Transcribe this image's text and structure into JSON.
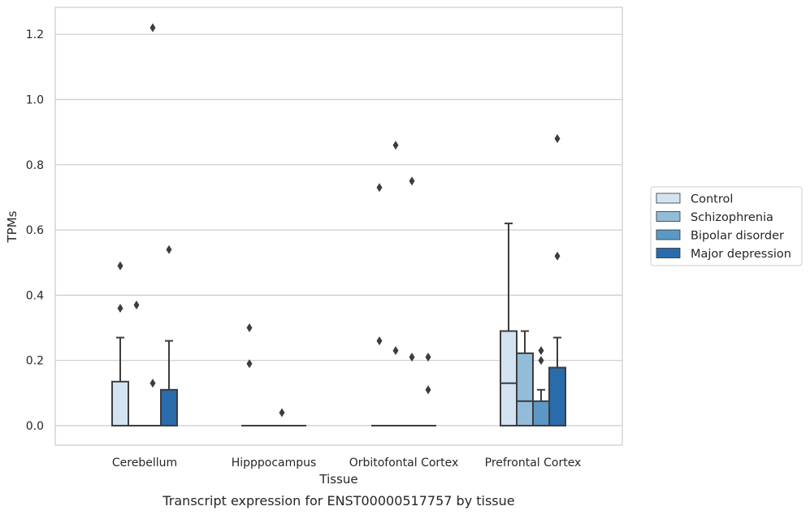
{
  "chart_data": {
    "type": "box",
    "xlabel": "Tissue",
    "ylabel": "TPMs",
    "caption": "Transcript expression for ENST00000517757 by tissue",
    "ylim": [
      -0.06,
      1.28
    ],
    "yticks": [
      "0.0",
      "0.2",
      "0.4",
      "0.6",
      "0.8",
      "1.0",
      "1.2"
    ],
    "grid": "horizontal",
    "legend_position": "right",
    "categories": [
      "Cerebellum",
      "Hipppocampus",
      "Orbitofontal Cortex",
      "Prefrontal Cortex"
    ],
    "series": [
      {
        "name": "Control",
        "color": "#d3e3f2"
      },
      {
        "name": "Schizophrenia",
        "color": "#93bcd8"
      },
      {
        "name": "Bipolar disorder",
        "color": "#5b98c6"
      },
      {
        "name": "Major depression",
        "color": "#2a6bab"
      }
    ],
    "boxes": [
      [
        {
          "q1": 0,
          "median": 0,
          "q3": 0.135,
          "whisker_low": 0,
          "whisker_high": 0.27,
          "outliers": [
            0.49,
            0.36
          ]
        },
        {
          "q1": 0,
          "median": 0,
          "q3": 0,
          "whisker_low": 0,
          "whisker_high": 0,
          "outliers": [
            0.37
          ]
        },
        {
          "q1": 0,
          "median": 0,
          "q3": 0,
          "whisker_low": 0,
          "whisker_high": 0,
          "outliers": [
            1.22,
            0.13
          ]
        },
        {
          "q1": 0,
          "median": 0,
          "q3": 0.11,
          "whisker_low": 0,
          "whisker_high": 0.26,
          "outliers": [
            0.54
          ]
        }
      ],
      [
        {
          "q1": 0,
          "median": 0,
          "q3": 0,
          "whisker_low": 0,
          "whisker_high": 0,
          "outliers": [
            0.3,
            0.19
          ]
        },
        {
          "q1": 0,
          "median": 0,
          "q3": 0,
          "whisker_low": 0,
          "whisker_high": 0,
          "outliers": []
        },
        {
          "q1": 0,
          "median": 0,
          "q3": 0,
          "whisker_low": 0,
          "whisker_high": 0,
          "outliers": [
            0.04
          ]
        },
        {
          "q1": 0,
          "median": 0,
          "q3": 0,
          "whisker_low": 0,
          "whisker_high": 0,
          "outliers": []
        }
      ],
      [
        {
          "q1": 0,
          "median": 0,
          "q3": 0,
          "whisker_low": 0,
          "whisker_high": 0,
          "outliers": [
            0.73,
            0.26
          ]
        },
        {
          "q1": 0,
          "median": 0,
          "q3": 0,
          "whisker_low": 0,
          "whisker_high": 0,
          "outliers": [
            0.86,
            0.23
          ]
        },
        {
          "q1": 0,
          "median": 0,
          "q3": 0,
          "whisker_low": 0,
          "whisker_high": 0,
          "outliers": [
            0.75,
            0.21
          ]
        },
        {
          "q1": 0,
          "median": 0,
          "q3": 0,
          "whisker_low": 0,
          "whisker_high": 0,
          "outliers": [
            0.21,
            0.11
          ]
        }
      ],
      [
        {
          "q1": 0,
          "median": 0.13,
          "q3": 0.29,
          "whisker_low": 0,
          "whisker_high": 0.62,
          "outliers": []
        },
        {
          "q1": 0,
          "median": 0.075,
          "q3": 0.222,
          "whisker_low": 0,
          "whisker_high": 0.29,
          "outliers": []
        },
        {
          "q1": 0,
          "median": 0,
          "q3": 0.075,
          "whisker_low": 0,
          "whisker_high": 0.11,
          "outliers": [
            0.23,
            0.2
          ]
        },
        {
          "q1": 0,
          "median": 0,
          "q3": 0.178,
          "whisker_low": 0,
          "whisker_high": 0.27,
          "outliers": [
            0.88,
            0.52
          ]
        }
      ]
    ]
  }
}
